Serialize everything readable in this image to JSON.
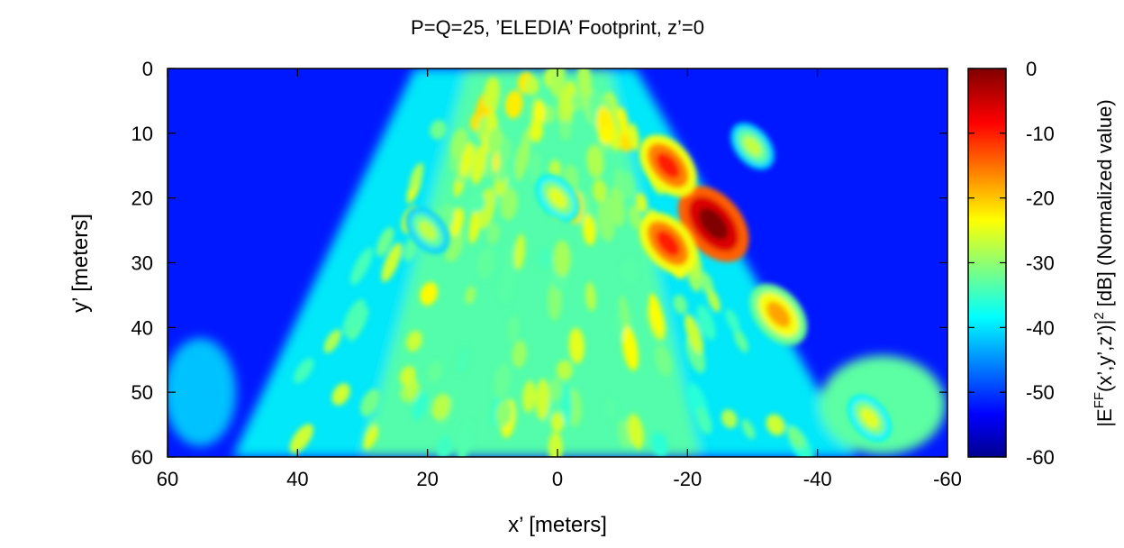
{
  "chart_data": {
    "type": "heatmap",
    "title": "P=Q=25, ’ELEDIA’ Footprint, z’=0",
    "xlabel": "x’ [meters]",
    "ylabel": "y’ [meters]",
    "xlim": [
      60,
      -60
    ],
    "ylim": [
      0,
      60
    ],
    "y_inverted": true,
    "x_ticks": [
      60,
      40,
      20,
      0,
      -20,
      -40,
      -60
    ],
    "y_ticks": [
      0,
      10,
      20,
      30,
      40,
      50,
      60
    ],
    "colorbar": {
      "label_main": "|E",
      "label_sup1": "FF",
      "label_mid": "(x’,y’,z’)|",
      "label_sup2": "2",
      "label_tail": " [dB] (Normalized value)",
      "range": [
        -60,
        0
      ],
      "ticks": [
        0,
        -10,
        -20,
        -30,
        -40,
        -50,
        -60
      ],
      "colormap": "jet",
      "colors": [
        "#00008f",
        "#0000ff",
        "#00ffff",
        "#ffff00",
        "#ff0000",
        "#800000"
      ]
    },
    "values_note": "",
    "features": [
      {
        "x": -24,
        "y": 24,
        "db": 0
      },
      {
        "x": -34,
        "y": 38,
        "db": -18
      },
      {
        "x": -17,
        "y": 15,
        "db": -10
      },
      {
        "x": -17,
        "y": 27,
        "db": -10
      },
      {
        "x": -30,
        "y": 12,
        "db": -27
      },
      {
        "x": -48,
        "y": 54,
        "db": -25
      },
      {
        "x": 0,
        "y": 20,
        "db": -25
      },
      {
        "x": 20,
        "y": 25,
        "db": -27
      }
    ]
  }
}
